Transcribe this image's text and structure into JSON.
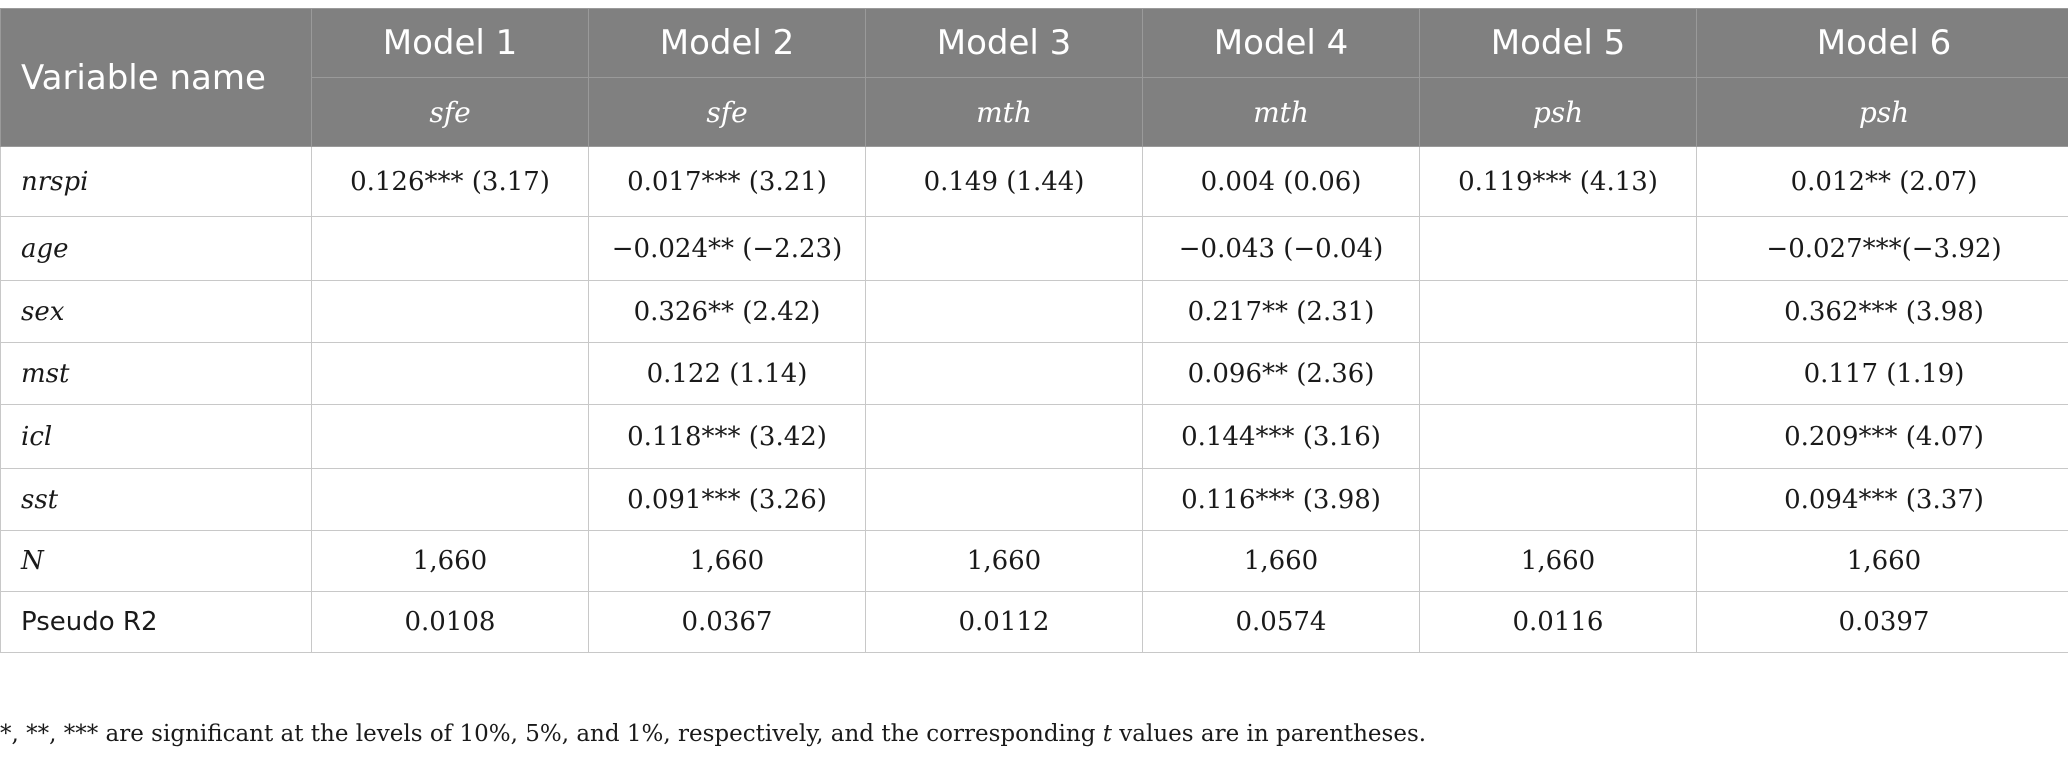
{
  "table": {
    "header_var": "Variable name",
    "models": [
      {
        "name": "Model 1",
        "dep": "sfe"
      },
      {
        "name": "Model 2",
        "dep": "sfe"
      },
      {
        "name": "Model 3",
        "dep": "mth"
      },
      {
        "name": "Model 4",
        "dep": "mth"
      },
      {
        "name": "Model 5",
        "dep": "psh"
      },
      {
        "name": "Model 6",
        "dep": "psh"
      }
    ],
    "rows": [
      {
        "label": "nrspi",
        "cells": [
          "0.126*** (3.17)",
          "0.017*** (3.21)",
          "0.149 (1.44)",
          "0.004 (0.06)",
          "0.119*** (4.13)",
          "0.012** (2.07)"
        ]
      },
      {
        "label": "age",
        "cells": [
          "",
          "−0.024** (−2.23)",
          "",
          "−0.043 (−0.04)",
          "",
          "−0.027***(−3.92)"
        ]
      },
      {
        "label": "sex",
        "cells": [
          "",
          "0.326** (2.42)",
          "",
          "0.217** (2.31)",
          "",
          "0.362*** (3.98)"
        ]
      },
      {
        "label": "mst",
        "cells": [
          "",
          "0.122 (1.14)",
          "",
          "0.096** (2.36)",
          "",
          "0.117 (1.19)"
        ]
      },
      {
        "label": "icl",
        "cells": [
          "",
          "0.118*** (3.42)",
          "",
          "0.144*** (3.16)",
          "",
          "0.209*** (4.07)"
        ]
      },
      {
        "label": "sst",
        "cells": [
          "",
          "0.091*** (3.26)",
          "",
          "0.116*** (3.98)",
          "",
          "0.094*** (3.37)"
        ]
      },
      {
        "label": "N",
        "cells": [
          "1,660",
          "1,660",
          "1,660",
          "1,660",
          "1,660",
          "1,660"
        ]
      },
      {
        "label": "Pseudo R2",
        "cells": [
          "0.0108",
          "0.0367",
          "0.0112",
          "0.0574",
          "0.0116",
          "0.0397"
        ]
      }
    ]
  },
  "footnote": {
    "before": "*, **, *** are significant at the levels of 10%, 5%, and 1%, respectively, and the corresponding ",
    "t_symbol": "t",
    "after": " values are in parentheses."
  }
}
